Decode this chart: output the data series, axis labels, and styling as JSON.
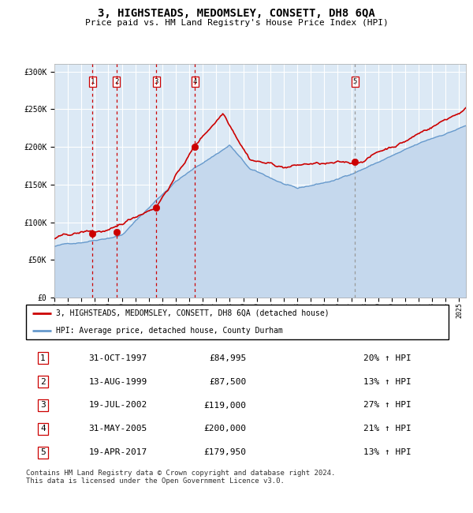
{
  "title": "3, HIGHSTEADS, MEDOMSLEY, CONSETT, DH8 6QA",
  "subtitle": "Price paid vs. HM Land Registry's House Price Index (HPI)",
  "sale_prices": [
    84995,
    87500,
    119000,
    200000,
    179950
  ],
  "sale_labels": [
    "1",
    "2",
    "3",
    "4",
    "5"
  ],
  "sale_decimal": [
    1997.83,
    1999.61,
    2002.54,
    2005.41,
    2017.29
  ],
  "legend_line1": "3, HIGHSTEADS, MEDOMSLEY, CONSETT, DH8 6QA (detached house)",
  "legend_line2": "HPI: Average price, detached house, County Durham",
  "table_rows": [
    {
      "num": "1",
      "date": "31-OCT-1997",
      "price": "£84,995",
      "pct": "20% ↑ HPI"
    },
    {
      "num": "2",
      "date": "13-AUG-1999",
      "price": "£87,500",
      "pct": "13% ↑ HPI"
    },
    {
      "num": "3",
      "date": "19-JUL-2002",
      "price": "£119,000",
      "pct": "27% ↑ HPI"
    },
    {
      "num": "4",
      "date": "31-MAY-2005",
      "price": "£200,000",
      "pct": "21% ↑ HPI"
    },
    {
      "num": "5",
      "date": "19-APR-2017",
      "price": "£179,950",
      "pct": "13% ↑ HPI"
    }
  ],
  "footer": "Contains HM Land Registry data © Crown copyright and database right 2024.\nThis data is licensed under the Open Government Licence v3.0.",
  "hpi_line_color": "#6699cc",
  "hpi_fill_color": "#c5d8ed",
  "price_color": "#cc0000",
  "dot_color": "#cc0000",
  "vline_color_red": "#cc0000",
  "vline_color_gray": "#999999",
  "plot_bg": "#dce9f5",
  "grid_color": "#ffffff",
  "ylim": [
    0,
    310000
  ],
  "xlim_start": 1995.0,
  "xlim_end": 2025.5,
  "yticks": [
    0,
    50000,
    100000,
    150000,
    200000,
    250000,
    300000
  ]
}
